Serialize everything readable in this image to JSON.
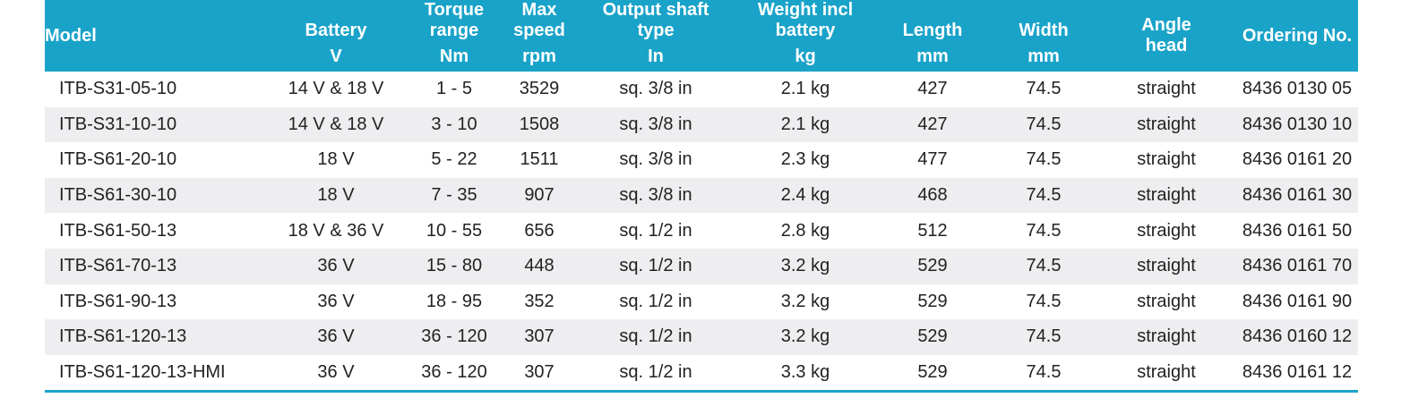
{
  "columns": [
    {
      "label": "Model",
      "unit": ""
    },
    {
      "label": "Battery",
      "unit": "V"
    },
    {
      "label": "Torque range",
      "line1": "Torque",
      "line2": "range",
      "unit": "Nm"
    },
    {
      "label": "Max speed",
      "line1": "Max",
      "line2": "speed",
      "unit": "rpm"
    },
    {
      "label": "Output shaft type",
      "line1": "Output shaft",
      "line2": "type",
      "unit": "In"
    },
    {
      "label": "Weight incl battery",
      "line1": "Weight incl",
      "line2": "battery",
      "unit": "kg"
    },
    {
      "label": "Length",
      "unit": "mm"
    },
    {
      "label": "Width",
      "unit": "mm"
    },
    {
      "label": "Angle head",
      "line1": "Angle",
      "line2": "head",
      "unit": ""
    },
    {
      "label": "Ordering No.",
      "unit": ""
    }
  ],
  "rows": [
    [
      "ITB-S31-05-10",
      "14 V & 18 V",
      "1 - 5",
      "3529",
      "sq. 3/8 in",
      "2.1 kg",
      "427",
      "74.5",
      "straight",
      "8436 0130 05"
    ],
    [
      "ITB-S31-10-10",
      "14 V & 18 V",
      "3 - 10",
      "1508",
      "sq. 3/8 in",
      "2.1 kg",
      "427",
      "74.5",
      "straight",
      "8436 0130 10"
    ],
    [
      "ITB-S61-20-10",
      "18 V",
      "5 - 22",
      "1511",
      "sq. 3/8 in",
      "2.3 kg",
      "477",
      "74.5",
      "straight",
      "8436 0161 20"
    ],
    [
      "ITB-S61-30-10",
      "18 V",
      "7 - 35",
      "907",
      "sq. 3/8 in",
      "2.4 kg",
      "468",
      "74.5",
      "straight",
      "8436 0161 30"
    ],
    [
      "ITB-S61-50-13",
      "18 V & 36 V",
      "10 - 55",
      "656",
      "sq. 1/2 in",
      "2.8 kg",
      "512",
      "74.5",
      "straight",
      "8436 0161 50"
    ],
    [
      "ITB-S61-70-13",
      "36 V",
      "15 - 80",
      "448",
      "sq. 1/2 in",
      "3.2 kg",
      "529",
      "74.5",
      "straight",
      "8436 0161 70"
    ],
    [
      "ITB-S61-90-13",
      "36 V",
      "18 - 95",
      "352",
      "sq. 1/2 in",
      "3.2 kg",
      "529",
      "74.5",
      "straight",
      "8436 0161 90"
    ],
    [
      "ITB-S61-120-13",
      "36 V",
      "36 - 120",
      "307",
      "sq. 1/2 in",
      "3.2 kg",
      "529",
      "74.5",
      "straight",
      "8436 0160 12"
    ],
    [
      "ITB-S61-120-13-HMI",
      "36 V",
      "36 - 120",
      "307",
      "sq. 1/2 in",
      "3.3 kg",
      "529",
      "74.5",
      "straight",
      "8436 0161 12"
    ]
  ],
  "colors": {
    "header_bg": "#1aa3c9",
    "header_text": "#ffffff",
    "row_alt_bg": "#eeeef1",
    "body_text": "#222222"
  }
}
